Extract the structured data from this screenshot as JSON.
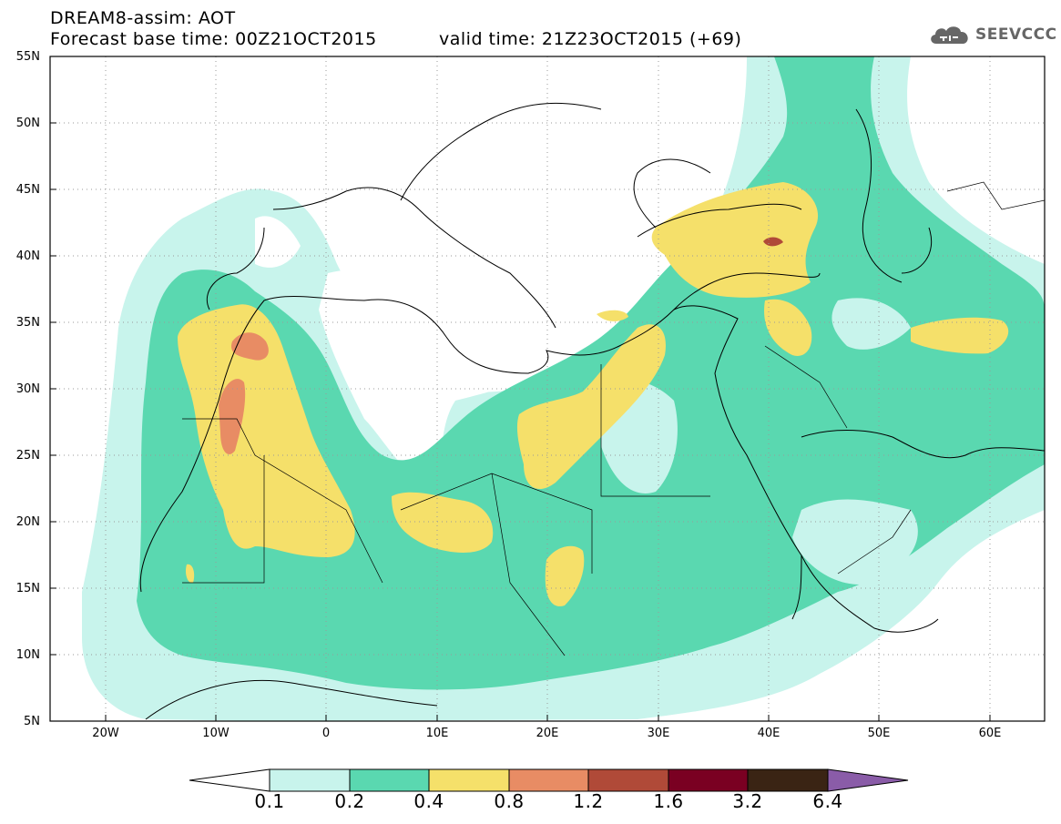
{
  "header": {
    "title": "DREAM8-assim: AOT",
    "base_time": "Forecast base time: 00Z21OCT2015",
    "valid_time": "valid time: 21Z23OCT2015 (+69)"
  },
  "logo": {
    "text": "SEEVCCC",
    "icon": "cloud-icon"
  },
  "map": {
    "variable": "AOT",
    "lat_labels": [
      "55N",
      "50N",
      "45N",
      "40N",
      "35N",
      "30N",
      "25N",
      "20N",
      "15N",
      "10N",
      "5N"
    ],
    "lon_labels": [
      "20W",
      "10W",
      "0",
      "10E",
      "20E",
      "30E",
      "40E",
      "50E",
      "60E"
    ],
    "lat_range": [
      5,
      55
    ],
    "lon_range": [
      -25,
      65
    ],
    "grid": "dotted"
  },
  "colorbar": {
    "labels": [
      "0.1",
      "0.2",
      "0.4",
      "0.8",
      "1.2",
      "1.6",
      "3.2",
      "6.4"
    ],
    "colors": [
      "#ffffff",
      "#c8f4ec",
      "#5ad8b0",
      "#f5e06a",
      "#e88c64",
      "#b04a38",
      "#7a0022",
      "#3a2414",
      "#8a5ca8"
    ]
  }
}
